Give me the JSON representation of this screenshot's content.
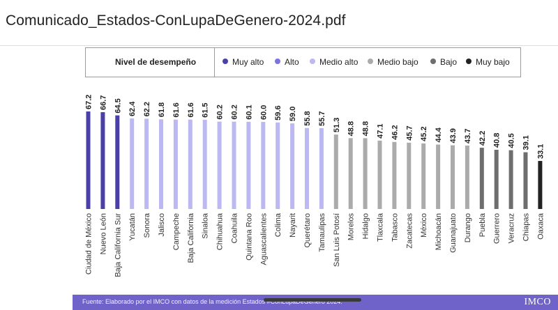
{
  "document": {
    "title": "Comunicado_Estados-ConLupaDeGenero-2024.pdf"
  },
  "legend": {
    "heading": "Nivel de desempeño",
    "items": [
      {
        "label": "Muy alto",
        "color": "#4b3fa8"
      },
      {
        "label": "Alto",
        "color": "#7c73e0"
      },
      {
        "label": "Medio alto",
        "color": "#bcb8f2"
      },
      {
        "label": "Medio bajo",
        "color": "#ababab"
      },
      {
        "label": "Bajo",
        "color": "#6e6e6e"
      },
      {
        "label": "Muy bajo",
        "color": "#222222"
      }
    ]
  },
  "chart_data": {
    "type": "bar",
    "title": "",
    "xlabel": "",
    "ylabel": "",
    "ylim": [
      0,
      67.2
    ],
    "grid": false,
    "legend_position": "top",
    "categories": [
      "Ciudad de México",
      "Nuevo León",
      "Baja California Sur",
      "Yucatán",
      "Sonora",
      "Jalisco",
      "Campeche",
      "Baja California",
      "Sinaloa",
      "Chihuahua",
      "Coahuila",
      "Quintana Roo",
      "Aguascalientes",
      "Colima",
      "Nayarit",
      "Querétaro",
      "Tamaulipas",
      "San Luis Potosí",
      "Morelos",
      "Hidalgo",
      "Tlaxcala",
      "Tabasco",
      "Zacatecas",
      "México",
      "Michoacán",
      "Guanajuato",
      "Durango",
      "Puebla",
      "Guerrero",
      "Veracruz",
      "Chiapas",
      "Oaxaca"
    ],
    "values": [
      67.2,
      66.7,
      64.5,
      62.4,
      62.2,
      61.8,
      61.6,
      61.6,
      61.5,
      60.2,
      60.2,
      60.1,
      60.0,
      59.6,
      59.0,
      55.8,
      55.7,
      51.3,
      48.8,
      48.8,
      47.1,
      46.2,
      45.7,
      45.2,
      44.4,
      43.9,
      43.7,
      42.2,
      40.8,
      40.5,
      39.1,
      33.1
    ],
    "value_labels": [
      "67.2",
      "66.7",
      "64.5",
      "62.4",
      "62.2",
      "61.8",
      "61.6",
      "61.6",
      "61.5",
      "60.2",
      "60.2",
      "60.1",
      "60.0",
      "59.6",
      "59.0",
      "55.8",
      "55.7",
      "51.3",
      "48.8",
      "48.8",
      "47.1",
      "46.2",
      "45.7",
      "45.2",
      "44.4",
      "43.9",
      "43.7",
      "42.2",
      "40.8",
      "40.5",
      "39.1",
      "33.1"
    ],
    "levels": [
      "Muy alto",
      "Muy alto",
      "Muy alto",
      "Medio alto",
      "Medio alto",
      "Medio alto",
      "Medio alto",
      "Medio alto",
      "Medio alto",
      "Medio alto",
      "Medio alto",
      "Medio alto",
      "Medio alto",
      "Medio alto",
      "Medio alto",
      "Medio alto",
      "Medio alto",
      "Medio bajo",
      "Medio bajo",
      "Medio bajo",
      "Medio bajo",
      "Medio bajo",
      "Medio bajo",
      "Medio bajo",
      "Medio bajo",
      "Medio bajo",
      "Medio bajo",
      "Bajo",
      "Bajo",
      "Bajo",
      "Bajo",
      "Muy bajo"
    ]
  },
  "footer": {
    "source": "Fuente: Elaborado por el IMCO con datos de la medición Estados #ConLupaDeGenero 2024.",
    "logo": "IMCO"
  }
}
